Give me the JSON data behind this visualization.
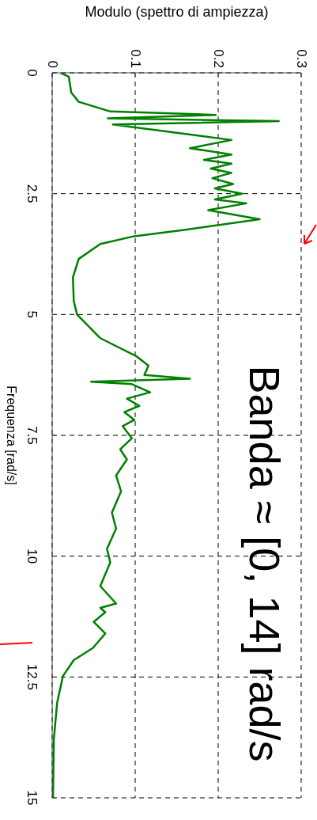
{
  "chart_data": {
    "type": "line",
    "xlabel": "Modulo (spettro di ampiezza)",
    "ylabel": "Frequenza [rad/s]",
    "annotations": [
      "Banda ≈ [0, 14] rad/s"
    ],
    "x": [
      0.01,
      0.02,
      0.023,
      0.032,
      0.07,
      0.197,
      0.067,
      0.273,
      0.073,
      0.216,
      0.166,
      0.216,
      0.183,
      0.216,
      0.191,
      0.216,
      0.193,
      0.218,
      0.196,
      0.229,
      0.196,
      0.234,
      0.188,
      0.25,
      0.159,
      0.099,
      0.058,
      0.032,
      0.025,
      0.026,
      0.03,
      0.058,
      0.102,
      0.116,
      0.111,
      0.166,
      0.047,
      0.096,
      0.118,
      0.09,
      0.105,
      0.087,
      0.099,
      0.085,
      0.096,
      0.082,
      0.09,
      0.077,
      0.083,
      0.072,
      0.077,
      0.066,
      0.07,
      0.058,
      0.077,
      0.058,
      0.064,
      0.05,
      0.064,
      0.049,
      0.026,
      0.013,
      0.006,
      0.002,
      0.001
    ],
    "series": [
      {
        "color": "#008000",
        "values": [
          0,
          0.08,
          0.41,
          0.6,
          0.8,
          0.87,
          0.94,
          1.0,
          1.07,
          1.39,
          1.56,
          1.69,
          1.8,
          1.88,
          1.98,
          2.07,
          2.18,
          2.3,
          2.39,
          2.5,
          2.62,
          2.7,
          2.84,
          3.03,
          3.25,
          3.38,
          3.54,
          3.85,
          4.23,
          4.72,
          5.0,
          5.49,
          5.87,
          6.06,
          6.25,
          6.33,
          6.39,
          6.44,
          6.61,
          6.74,
          6.89,
          7.02,
          7.18,
          7.31,
          7.56,
          7.79,
          8.0,
          8.33,
          8.66,
          9.1,
          9.43,
          9.85,
          10.13,
          10.62,
          10.98,
          11.07,
          11.16,
          11.36,
          11.6,
          11.9,
          12.15,
          12.48,
          13.03,
          13.79,
          15
        ]
      }
    ],
    "xlim": [
      0,
      0.3
    ],
    "ylim": [
      15,
      0
    ],
    "xticks": [
      0,
      0.1,
      0.2,
      0.3
    ],
    "yticks": [
      0,
      2.5,
      5,
      7.5,
      10,
      12.5,
      15
    ],
    "grid": true,
    "marker": "none",
    "line_style": "solid"
  }
}
